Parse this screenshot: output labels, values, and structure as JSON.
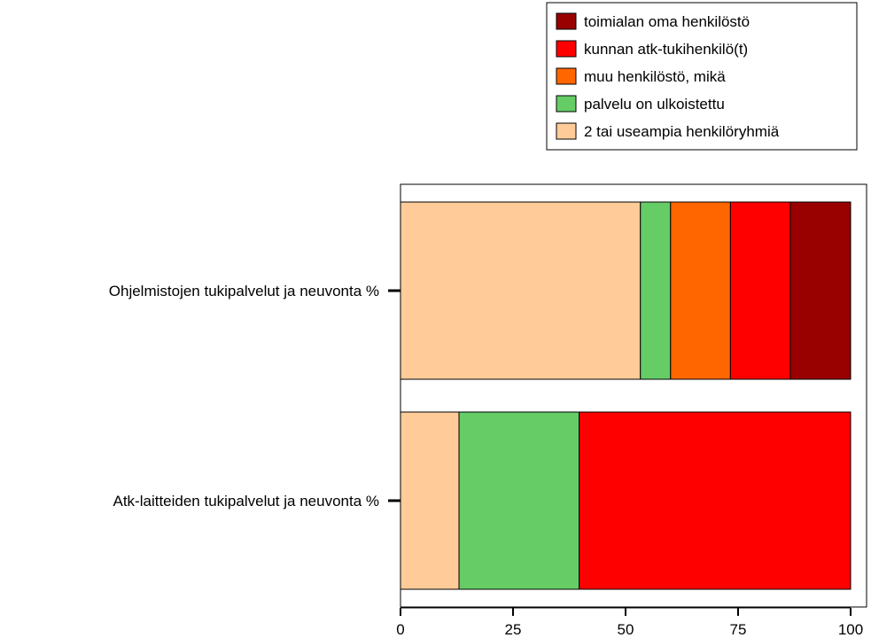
{
  "chart_data": {
    "type": "bar",
    "orientation": "horizontal",
    "stacked": true,
    "categories": [
      "Ohjelmistojen tukipalvelut ja neuvonta %",
      "Atk-laitteiden tukipalvelut ja neuvonta %"
    ],
    "series": [
      {
        "name": "2 tai useampia henkilöryhmiä",
        "color": "#FFCC99",
        "values": [
          53.3,
          13.0
        ]
      },
      {
        "name": "palvelu on ulkoistettu",
        "color": "#66CC66",
        "values": [
          6.7,
          26.7
        ]
      },
      {
        "name": "muu henkilöstö, mikä",
        "color": "#FF6600",
        "values": [
          13.3,
          0
        ]
      },
      {
        "name": "kunnan atk-tukihenkilö(t)",
        "color": "#FF0000",
        "values": [
          13.3,
          60.3
        ]
      },
      {
        "name": "toimialan oma henkilöstö",
        "color": "#990000",
        "values": [
          13.4,
          0
        ]
      }
    ],
    "xlim": [
      0,
      100
    ],
    "xticks": [
      "0",
      "25",
      "50",
      "75",
      "100"
    ],
    "xlabel": "",
    "ylabel": "",
    "title": "",
    "legend": {
      "position": "top-right",
      "order": [
        "toimialan oma henkilöstö",
        "kunnan atk-tukihenkilö(t)",
        "muu henkilöstö, mikä",
        "palvelu on ulkoistettu",
        "2 tai useampia henkilöryhmiä"
      ]
    },
    "grid": false
  }
}
